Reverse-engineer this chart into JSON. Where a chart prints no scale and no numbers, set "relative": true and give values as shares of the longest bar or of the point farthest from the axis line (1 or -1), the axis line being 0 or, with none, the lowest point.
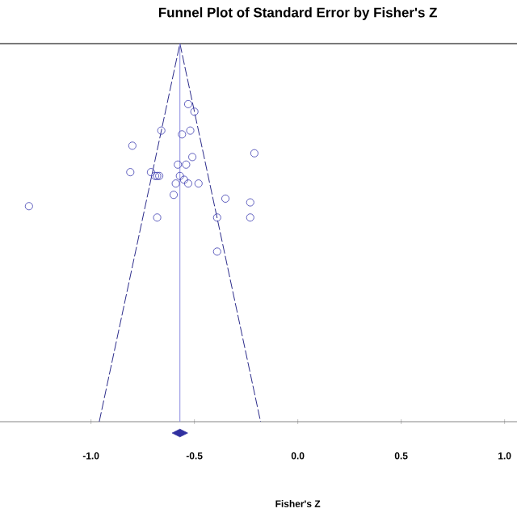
{
  "chart_data": {
    "type": "scatter",
    "title": "Funnel Plot of Standard Error by Fisher's Z",
    "xlabel": "Fisher's Z",
    "relative": true,
    "tick_labels": "x",
    "marker": "circle",
    "xlim": [
      -1.44,
      1.06
    ],
    "xticks": [
      {
        "value": -1.0,
        "label": "-1.0"
      },
      {
        "value": -0.5,
        "label": "-0.5"
      },
      {
        "value": 0.0,
        "label": "0.0"
      },
      {
        "value": 0.5,
        "label": "0.5"
      },
      {
        "value": 1.0,
        "label": "1.0"
      }
    ],
    "series": [
      {
        "color": "#3b3bb0",
        "x": [
          -0.53,
          -0.5,
          -0.66,
          -0.56,
          -0.52,
          -0.8,
          -0.21,
          -0.51,
          -0.54,
          -0.58,
          -0.81,
          -0.71,
          -0.69,
          -0.67,
          -0.68,
          -0.57,
          -0.55,
          -0.59,
          -0.53,
          -0.48,
          -0.6,
          -1.3,
          -0.35,
          -0.23,
          -0.68,
          -0.39,
          -0.23,
          -0.39
        ],
        "values": [
          0.84,
          0.82,
          0.77,
          0.76,
          0.77,
          0.73,
          0.71,
          0.7,
          0.68,
          0.68,
          0.66,
          0.66,
          0.65,
          0.65,
          0.65,
          0.65,
          0.64,
          0.63,
          0.63,
          0.63,
          0.6,
          0.57,
          0.59,
          0.58,
          0.54,
          0.54,
          0.54,
          0.45
        ]
      },
      {
        "type": "line",
        "color": "#2a2a8a",
        "marker": "none",
        "line_style": "dashed",
        "x": [
          -0.96,
          -0.57,
          -0.18
        ],
        "values": [
          0,
          1,
          0
        ]
      },
      {
        "type": "line",
        "color": "#8a8ae0",
        "marker": "none",
        "line_style": "solid",
        "x": [
          -0.57,
          -0.57
        ],
        "values": [
          0,
          1
        ]
      },
      {
        "color": "#3030a0",
        "marker": "diamond",
        "x": [
          -0.57
        ],
        "values": [
          -0.03
        ]
      }
    ]
  }
}
